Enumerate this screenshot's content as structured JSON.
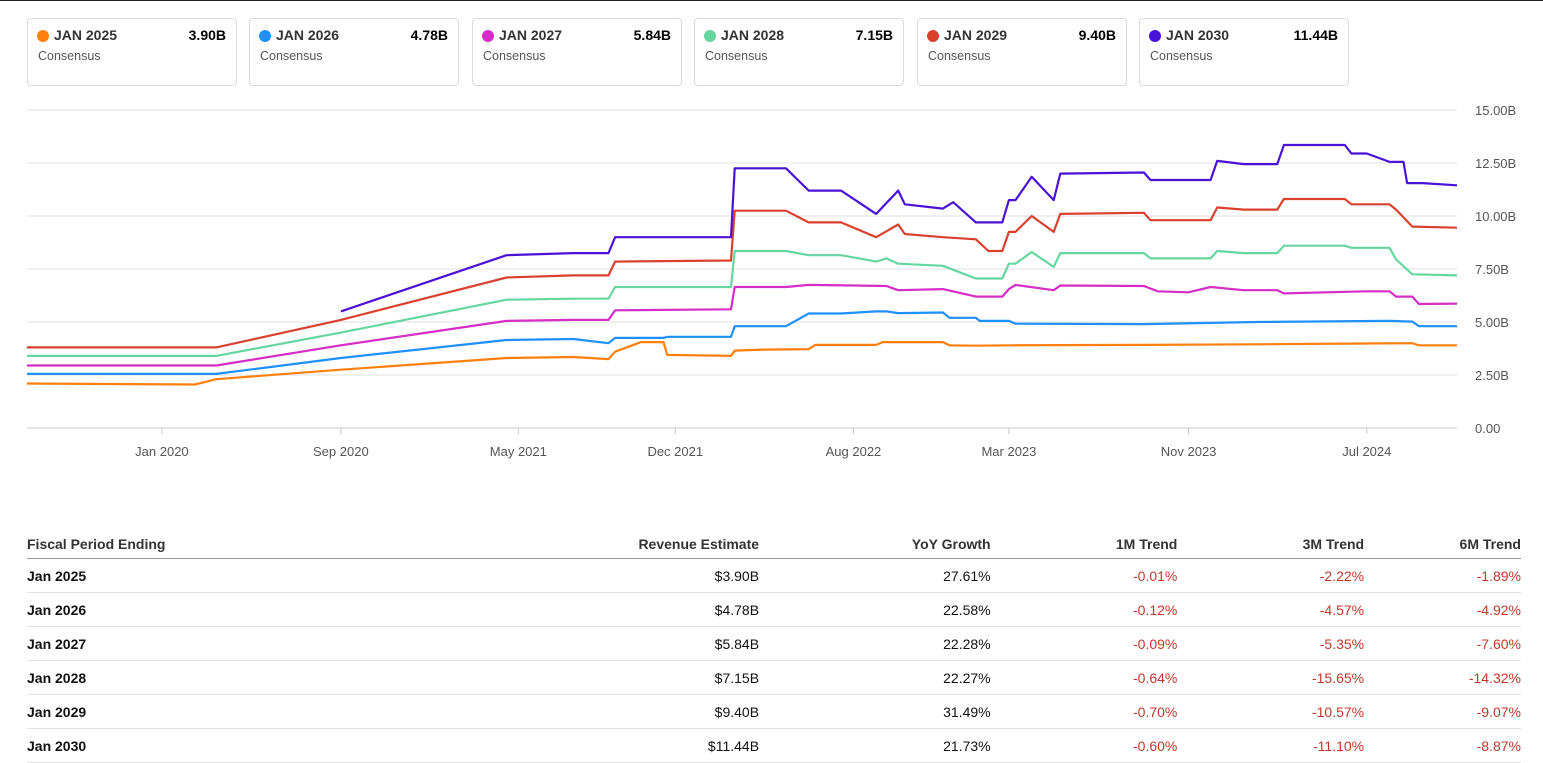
{
  "cards": [
    {
      "label": "JAN 2025",
      "value": "3.90B",
      "sub": "Consensus",
      "color": "#ff7f0e"
    },
    {
      "label": "JAN 2026",
      "value": "4.78B",
      "sub": "Consensus",
      "color": "#1e90ff"
    },
    {
      "label": "JAN 2027",
      "value": "5.84B",
      "sub": "Consensus",
      "color": "#d62cc8"
    },
    {
      "label": "JAN 2028",
      "value": "7.15B",
      "sub": "Consensus",
      "color": "#66d6a0"
    },
    {
      "label": "JAN 2029",
      "value": "9.40B",
      "sub": "Consensus",
      "color": "#d9412e"
    },
    {
      "label": "JAN 2030",
      "value": "11.44B",
      "sub": "Consensus",
      "color": "#4a12d6"
    }
  ],
  "chart_data": {
    "type": "line",
    "title": "",
    "xlabel": "",
    "ylabel": "",
    "x_range": [
      "2019-07-01",
      "2024-11-01"
    ],
    "ylim": [
      0,
      15
    ],
    "y_ticks": [
      0,
      2.5,
      5,
      7.5,
      10,
      12.5,
      15
    ],
    "y_tick_labels": [
      "0.00",
      "2.50B",
      "5.00B",
      "7.50B",
      "10.00B",
      "12.50B",
      "15.00B"
    ],
    "x_ticks": [
      "2020-01-01",
      "2020-09-01",
      "2021-05-01",
      "2021-12-01",
      "2022-08-01",
      "2023-03-01",
      "2023-11-01",
      "2024-07-01"
    ],
    "x_tick_labels": [
      "Jan 2020",
      "Sep 2020",
      "May 2021",
      "Dec 2021",
      "Aug 2022",
      "Mar 2023",
      "Nov 2023",
      "Jul 2024"
    ],
    "grid": "horizontal",
    "series": [
      {
        "name": "JAN 2025",
        "color": "#ff7f0e",
        "points": [
          [
            "2019-07-01",
            2.1
          ],
          [
            "2020-02-15",
            2.05
          ],
          [
            "2020-03-15",
            2.3
          ],
          [
            "2020-09-01",
            2.75
          ],
          [
            "2021-04-15",
            3.3
          ],
          [
            "2021-07-15",
            3.35
          ],
          [
            "2021-09-01",
            3.25
          ],
          [
            "2021-09-10",
            3.6
          ],
          [
            "2021-10-15",
            4.05
          ],
          [
            "2021-11-15",
            4.05
          ],
          [
            "2021-11-20",
            3.45
          ],
          [
            "2022-02-15",
            3.4
          ],
          [
            "2022-02-20",
            3.65
          ],
          [
            "2022-04-01",
            3.7
          ],
          [
            "2022-06-01",
            3.72
          ],
          [
            "2022-06-10",
            3.92
          ],
          [
            "2022-09-01",
            3.92
          ],
          [
            "2022-09-10",
            4.05
          ],
          [
            "2022-12-01",
            4.05
          ],
          [
            "2022-12-10",
            3.9
          ],
          [
            "2023-01-15",
            3.88
          ],
          [
            "2023-03-01",
            3.9
          ],
          [
            "2023-09-01",
            3.92
          ],
          [
            "2024-02-01",
            3.95
          ],
          [
            "2024-06-01",
            3.98
          ],
          [
            "2024-09-01",
            4.0
          ],
          [
            "2024-09-10",
            3.9
          ],
          [
            "2024-11-01",
            3.9
          ]
        ]
      },
      {
        "name": "JAN 2026",
        "color": "#1e90ff",
        "points": [
          [
            "2019-07-01",
            2.55
          ],
          [
            "2020-03-15",
            2.55
          ],
          [
            "2020-09-01",
            3.3
          ],
          [
            "2021-04-15",
            4.15
          ],
          [
            "2021-07-15",
            4.2
          ],
          [
            "2021-09-01",
            4.0
          ],
          [
            "2021-09-10",
            4.25
          ],
          [
            "2021-11-15",
            4.25
          ],
          [
            "2021-11-20",
            4.3
          ],
          [
            "2022-02-15",
            4.3
          ],
          [
            "2022-02-20",
            4.8
          ],
          [
            "2022-05-01",
            4.8
          ],
          [
            "2022-06-01",
            5.4
          ],
          [
            "2022-07-15",
            5.4
          ],
          [
            "2022-09-01",
            5.5
          ],
          [
            "2022-09-15",
            5.5
          ],
          [
            "2022-10-01",
            5.42
          ],
          [
            "2022-12-01",
            5.45
          ],
          [
            "2022-12-10",
            5.2
          ],
          [
            "2023-01-15",
            5.2
          ],
          [
            "2023-01-20",
            5.05
          ],
          [
            "2023-03-01",
            5.05
          ],
          [
            "2023-03-10",
            4.92
          ],
          [
            "2023-09-01",
            4.9
          ],
          [
            "2024-02-01",
            5.0
          ],
          [
            "2024-08-01",
            5.05
          ],
          [
            "2024-09-01",
            5.02
          ],
          [
            "2024-09-10",
            4.8
          ],
          [
            "2024-11-01",
            4.8
          ]
        ]
      },
      {
        "name": "JAN 2027",
        "color": "#d62cc8",
        "points": [
          [
            "2019-07-01",
            2.95
          ],
          [
            "2020-03-15",
            2.95
          ],
          [
            "2020-09-01",
            3.9
          ],
          [
            "2021-04-15",
            5.05
          ],
          [
            "2021-07-15",
            5.1
          ],
          [
            "2021-09-01",
            5.1
          ],
          [
            "2021-09-10",
            5.55
          ],
          [
            "2022-02-15",
            5.6
          ],
          [
            "2022-02-20",
            6.65
          ],
          [
            "2022-05-01",
            6.65
          ],
          [
            "2022-06-01",
            6.75
          ],
          [
            "2022-08-01",
            6.72
          ],
          [
            "2022-09-15",
            6.7
          ],
          [
            "2022-10-01",
            6.5
          ],
          [
            "2022-12-01",
            6.55
          ],
          [
            "2023-01-15",
            6.2
          ],
          [
            "2023-02-20",
            6.2
          ],
          [
            "2023-03-01",
            6.55
          ],
          [
            "2023-03-10",
            6.75
          ],
          [
            "2023-05-01",
            6.5
          ],
          [
            "2023-05-10",
            6.72
          ],
          [
            "2023-09-01",
            6.7
          ],
          [
            "2023-09-20",
            6.45
          ],
          [
            "2023-11-01",
            6.4
          ],
          [
            "2023-12-01",
            6.65
          ],
          [
            "2024-01-15",
            6.5
          ],
          [
            "2024-03-01",
            6.5
          ],
          [
            "2024-03-10",
            6.35
          ],
          [
            "2024-07-01",
            6.45
          ],
          [
            "2024-08-01",
            6.45
          ],
          [
            "2024-08-10",
            6.2
          ],
          [
            "2024-09-01",
            6.2
          ],
          [
            "2024-09-10",
            5.85
          ],
          [
            "2024-11-01",
            5.87
          ]
        ]
      },
      {
        "name": "JAN 2028",
        "color": "#66d6a0",
        "points": [
          [
            "2019-07-01",
            3.4
          ],
          [
            "2020-03-15",
            3.4
          ],
          [
            "2020-09-01",
            4.5
          ],
          [
            "2021-04-15",
            6.05
          ],
          [
            "2021-07-15",
            6.1
          ],
          [
            "2021-09-01",
            6.1
          ],
          [
            "2021-09-10",
            6.65
          ],
          [
            "2022-02-15",
            6.65
          ],
          [
            "2022-02-20",
            8.35
          ],
          [
            "2022-05-01",
            8.35
          ],
          [
            "2022-06-01",
            8.15
          ],
          [
            "2022-07-15",
            8.15
          ],
          [
            "2022-09-01",
            7.85
          ],
          [
            "2022-09-15",
            8.0
          ],
          [
            "2022-10-01",
            7.75
          ],
          [
            "2022-12-01",
            7.65
          ],
          [
            "2023-01-15",
            7.05
          ],
          [
            "2023-02-20",
            7.05
          ],
          [
            "2023-03-01",
            7.75
          ],
          [
            "2023-03-10",
            7.75
          ],
          [
            "2023-04-01",
            8.3
          ],
          [
            "2023-05-01",
            7.6
          ],
          [
            "2023-05-10",
            8.25
          ],
          [
            "2023-09-01",
            8.25
          ],
          [
            "2023-09-10",
            8.0
          ],
          [
            "2023-12-01",
            8.0
          ],
          [
            "2023-12-10",
            8.35
          ],
          [
            "2024-01-15",
            8.25
          ],
          [
            "2024-03-01",
            8.25
          ],
          [
            "2024-03-10",
            8.6
          ],
          [
            "2024-06-01",
            8.6
          ],
          [
            "2024-06-10",
            8.5
          ],
          [
            "2024-08-01",
            8.5
          ],
          [
            "2024-08-10",
            7.95
          ],
          [
            "2024-09-01",
            7.25
          ],
          [
            "2024-11-01",
            7.2
          ]
        ]
      },
      {
        "name": "JAN 2029",
        "color": "#d9412e",
        "points": [
          [
            "2019-07-01",
            3.8
          ],
          [
            "2020-03-15",
            3.8
          ],
          [
            "2020-09-01",
            5.1
          ],
          [
            "2021-04-15",
            7.1
          ],
          [
            "2021-07-15",
            7.2
          ],
          [
            "2021-09-01",
            7.2
          ],
          [
            "2021-09-10",
            7.85
          ],
          [
            "2022-02-15",
            7.9
          ],
          [
            "2022-02-20",
            10.25
          ],
          [
            "2022-05-01",
            10.25
          ],
          [
            "2022-06-01",
            9.7
          ],
          [
            "2022-07-15",
            9.7
          ],
          [
            "2022-09-01",
            9.0
          ],
          [
            "2022-10-01",
            9.6
          ],
          [
            "2022-10-10",
            9.15
          ],
          [
            "2022-12-01",
            9.0
          ],
          [
            "2023-01-15",
            8.9
          ],
          [
            "2023-02-01",
            8.35
          ],
          [
            "2023-02-20",
            8.35
          ],
          [
            "2023-03-01",
            9.25
          ],
          [
            "2023-03-10",
            9.25
          ],
          [
            "2023-04-01",
            10.0
          ],
          [
            "2023-05-01",
            9.25
          ],
          [
            "2023-05-10",
            10.1
          ],
          [
            "2023-09-01",
            10.15
          ],
          [
            "2023-09-10",
            9.8
          ],
          [
            "2023-12-01",
            9.8
          ],
          [
            "2023-12-10",
            10.4
          ],
          [
            "2024-01-15",
            10.3
          ],
          [
            "2024-03-01",
            10.3
          ],
          [
            "2024-03-10",
            10.8
          ],
          [
            "2024-06-01",
            10.8
          ],
          [
            "2024-06-10",
            10.55
          ],
          [
            "2024-08-01",
            10.55
          ],
          [
            "2024-08-10",
            10.3
          ],
          [
            "2024-09-01",
            9.5
          ],
          [
            "2024-11-01",
            9.45
          ]
        ]
      },
      {
        "name": "JAN 2030",
        "color": "#4a12d6",
        "points": [
          [
            "2020-09-01",
            5.5
          ],
          [
            "2021-04-15",
            8.15
          ],
          [
            "2021-07-15",
            8.25
          ],
          [
            "2021-09-01",
            8.25
          ],
          [
            "2021-09-10",
            9.0
          ],
          [
            "2022-02-15",
            9.0
          ],
          [
            "2022-02-20",
            12.25
          ],
          [
            "2022-05-01",
            12.25
          ],
          [
            "2022-06-01",
            11.2
          ],
          [
            "2022-07-15",
            11.2
          ],
          [
            "2022-09-01",
            10.1
          ],
          [
            "2022-10-01",
            11.2
          ],
          [
            "2022-10-10",
            10.55
          ],
          [
            "2022-12-01",
            10.35
          ],
          [
            "2022-12-15",
            10.65
          ],
          [
            "2023-01-15",
            9.7
          ],
          [
            "2023-02-20",
            9.7
          ],
          [
            "2023-03-01",
            10.75
          ],
          [
            "2023-03-10",
            10.75
          ],
          [
            "2023-04-01",
            11.85
          ],
          [
            "2023-05-01",
            10.75
          ],
          [
            "2023-05-10",
            12.0
          ],
          [
            "2023-09-01",
            12.05
          ],
          [
            "2023-09-10",
            11.7
          ],
          [
            "2023-12-01",
            11.7
          ],
          [
            "2023-12-10",
            12.6
          ],
          [
            "2024-01-15",
            12.45
          ],
          [
            "2024-03-01",
            12.45
          ],
          [
            "2024-03-10",
            13.35
          ],
          [
            "2024-06-01",
            13.35
          ],
          [
            "2024-06-10",
            12.95
          ],
          [
            "2024-07-01",
            12.95
          ],
          [
            "2024-08-01",
            12.55
          ],
          [
            "2024-08-20",
            12.55
          ],
          [
            "2024-08-25",
            11.55
          ],
          [
            "2024-09-15",
            11.55
          ],
          [
            "2024-11-01",
            11.45
          ]
        ]
      }
    ]
  },
  "table": {
    "headers": [
      "Fiscal Period Ending",
      "Revenue Estimate",
      "YoY Growth",
      "1M Trend",
      "3M Trend",
      "6M Trend"
    ],
    "rows": [
      [
        "Jan 2025",
        "$3.90B",
        "27.61%",
        "-0.01%",
        "-2.22%",
        "-1.89%"
      ],
      [
        "Jan 2026",
        "$4.78B",
        "22.58%",
        "-0.12%",
        "-4.57%",
        "-4.92%"
      ],
      [
        "Jan 2027",
        "$5.84B",
        "22.28%",
        "-0.09%",
        "-5.35%",
        "-7.60%"
      ],
      [
        "Jan 2028",
        "$7.15B",
        "22.27%",
        "-0.64%",
        "-15.65%",
        "-14.32%"
      ],
      [
        "Jan 2029",
        "$9.40B",
        "31.49%",
        "-0.70%",
        "-10.57%",
        "-9.07%"
      ],
      [
        "Jan 2030",
        "$11.44B",
        "21.73%",
        "-0.60%",
        "-11.10%",
        "-8.87%"
      ]
    ]
  }
}
